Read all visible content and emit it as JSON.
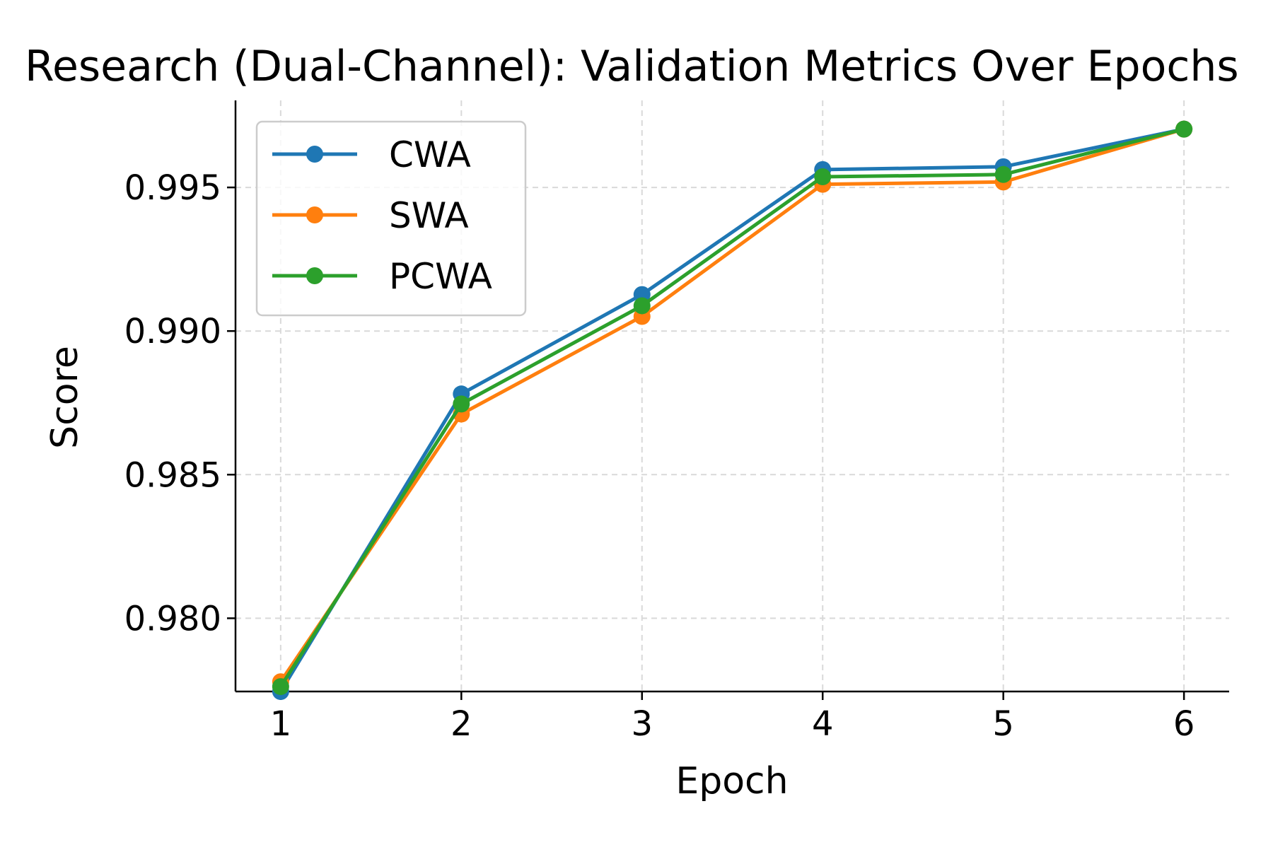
{
  "chart_data": {
    "type": "line",
    "title": "Research (Dual-Channel): Validation Metrics Over Epochs",
    "xlabel": "Epoch",
    "ylabel": "Score",
    "x": [
      1,
      2,
      3,
      4,
      5,
      6
    ],
    "xticks": [
      1,
      2,
      3,
      4,
      5,
      6
    ],
    "yticks": [
      0.98,
      0.985,
      0.99,
      0.995
    ],
    "ytick_labels": [
      "0.980",
      "0.985",
      "0.990",
      "0.995"
    ],
    "xlim": [
      0.75,
      6.25
    ],
    "ylim": [
      0.97745,
      0.99803
    ],
    "grid": true,
    "legend_position": "top-left",
    "series": [
      {
        "name": "CWA",
        "color": "#1f77b4",
        "values": [
          0.97745,
          0.98781,
          0.99127,
          0.99562,
          0.99572,
          0.99703
        ]
      },
      {
        "name": "SWA",
        "color": "#ff7f0e",
        "values": [
          0.97779,
          0.98711,
          0.99051,
          0.99511,
          0.99519,
          0.99703
        ]
      },
      {
        "name": "PCWA",
        "color": "#2ca02c",
        "values": [
          0.97762,
          0.98746,
          0.99088,
          0.99537,
          0.99545,
          0.99703
        ]
      }
    ]
  }
}
